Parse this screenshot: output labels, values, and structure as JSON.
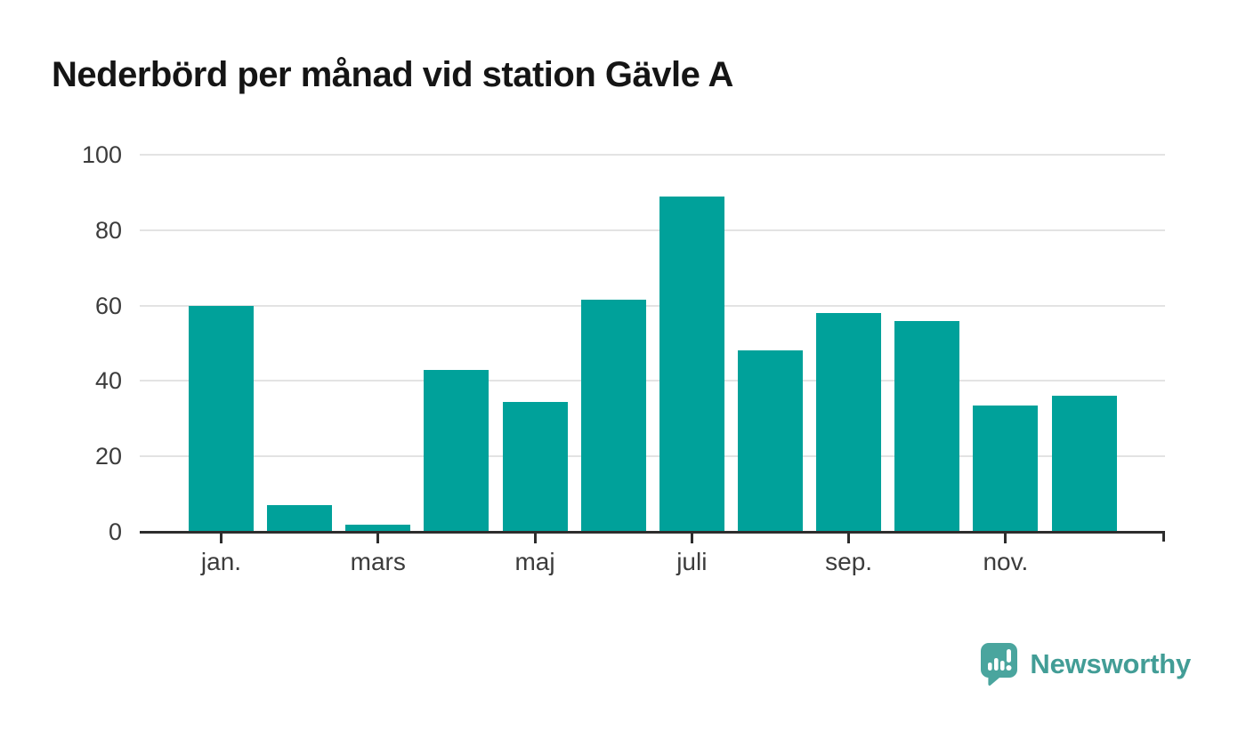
{
  "title": "Nederbörd per månad vid station Gävle A",
  "chart_data": {
    "type": "bar",
    "title": "Nederbörd per månad vid station Gävle A",
    "n_bars": 12,
    "values": [
      60,
      7,
      2,
      43,
      34.5,
      61.5,
      89,
      48,
      58,
      56,
      33.5,
      36
    ],
    "x_ticks": [
      {
        "label": "jan.",
        "bar": 0
      },
      {
        "label": "mars",
        "bar": 2
      },
      {
        "label": "maj",
        "bar": 4
      },
      {
        "label": "juli",
        "bar": 6
      },
      {
        "label": "sep.",
        "bar": 8
      },
      {
        "label": "nov.",
        "bar": 10
      }
    ],
    "y_ticks": [
      0,
      20,
      40,
      60,
      80,
      100
    ],
    "ylim": [
      0,
      100
    ],
    "xlabel": "",
    "ylabel": "",
    "grid": "horizontal",
    "legend": "none",
    "bar_color": "#00a19a"
  },
  "colors": {
    "bar": "#00a19a",
    "axis": "#2d2d2d",
    "gridline": "#e3e3e3",
    "tick_label": "#3c3c3c",
    "title": "#151515",
    "brand": "#429d96"
  },
  "branding": {
    "logo_text": "Newsworthy",
    "logo_icon": "newsworthy-speech-bubble-chart-icon"
  }
}
